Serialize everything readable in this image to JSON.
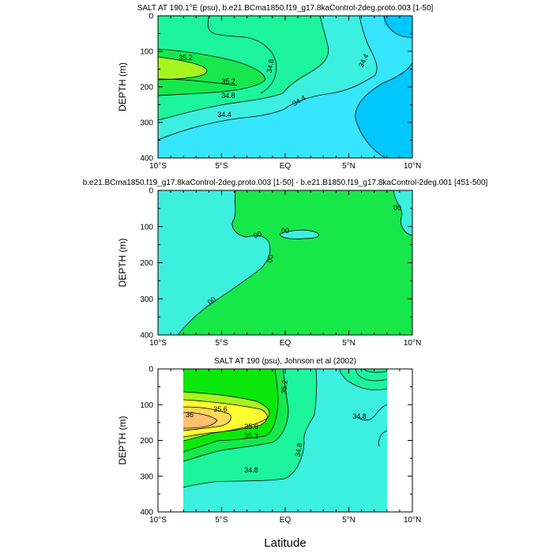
{
  "chart_data": [
    {
      "type": "contour",
      "title": "SALT AT 190.1°E (psu), b.e21.BCma1850.f19_g17.8kaControl-2deg.proto.003 [1-50]",
      "ylabel": "DEPTH (m)",
      "xlabel": "",
      "x_ticks": [
        "10°S",
        "5°S",
        "EQ",
        "5°N",
        "10°N"
      ],
      "xlim": [
        -10,
        10
      ],
      "y_ticks": [
        "0",
        "100",
        "200",
        "300",
        "400"
      ],
      "ylim": [
        400,
        0
      ],
      "contour_labels": [
        "35.2",
        "35.2",
        "34.8",
        "34.8",
        "34.4",
        "34.4",
        "34.4"
      ]
    },
    {
      "type": "contour",
      "title": "b.e21.BCma1850.f19_g17.8kaControl-2deg.proto.003 [1-50] - b.e21.B1850.f19_g17.8kaControl-2deg.001 [451-500]",
      "ylabel": "DEPTH (m)",
      "xlabel": "",
      "x_ticks": [
        "10°S",
        "5°S",
        "EQ",
        "5°N",
        "10°N"
      ],
      "xlim": [
        -10,
        10
      ],
      "y_ticks": [
        "0",
        "100",
        "200",
        "300",
        "400"
      ],
      "ylim": [
        400,
        0
      ],
      "contour_labels": [
        "00",
        "00",
        "00",
        "00",
        "00"
      ]
    },
    {
      "type": "contour",
      "title": "SALT AT 190 (psu), Johnson et al (2002)",
      "ylabel": "DEPTH (m)",
      "xlabel": "Latitude",
      "x_ticks": [
        "10°S",
        "5°S",
        "EQ",
        "5°N",
        "10°N"
      ],
      "xlim": [
        -10,
        10
      ],
      "y_ticks": [
        "0",
        "100",
        "200",
        "300",
        "400"
      ],
      "ylim": [
        400,
        0
      ],
      "contour_labels": [
        "35.2",
        "35.6",
        "36",
        "35.6",
        "35.2",
        "34.8",
        "34.8",
        "34.8"
      ]
    }
  ],
  "colors": {
    "lev_344_low": "#00c8ff",
    "lev_344": "#36e6ff",
    "lev_348": "#3cf0e0",
    "lev_352": "#1cf59c",
    "lev_356": "#16e84e",
    "lev_36": "#0ae80a",
    "lev_hi1": "#a6f51f",
    "lev_hi2": "#ffff30",
    "lev_hi3": "#ffd85a",
    "lev_hi4": "#ffc070",
    "diff_pos": "#17e84a",
    "diff_neg": "#3cf0de"
  }
}
